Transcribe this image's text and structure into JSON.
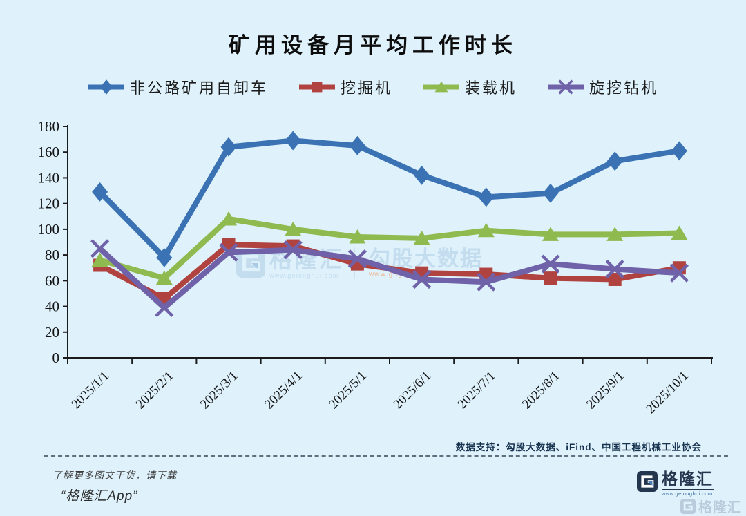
{
  "chart_data": {
    "type": "line",
    "title": "矿用设备月平均工作时长",
    "xlabel": "",
    "ylabel": "",
    "categories": [
      "2025/1/1",
      "2025/2/1",
      "2025/3/1",
      "2025/4/1",
      "2025/5/1",
      "2025/6/1",
      "2025/7/1",
      "2025/8/1",
      "2025/9/1",
      "2025/10/1"
    ],
    "series": [
      {
        "name": "非公路矿用自卸车",
        "color": "#3A72B4",
        "marker": "diamond",
        "values": [
          129,
          78,
          164,
          169,
          165,
          142,
          125,
          128,
          153,
          161
        ]
      },
      {
        "name": "挖掘机",
        "color": "#B04340",
        "marker": "square",
        "values": [
          72,
          46,
          88,
          87,
          73,
          66,
          65,
          62,
          61,
          70
        ]
      },
      {
        "name": "装载机",
        "color": "#8FBA4F",
        "marker": "triangle",
        "values": [
          76,
          62,
          108,
          100,
          94,
          93,
          99,
          96,
          96,
          97
        ]
      },
      {
        "name": "旋挖钻机",
        "color": "#6F62A8",
        "marker": "x",
        "values": [
          85,
          39,
          82,
          84,
          77,
          61,
          59,
          73,
          69,
          66
        ]
      }
    ],
    "ylim": [
      0,
      180
    ],
    "yticks": [
      0,
      20,
      40,
      60,
      80,
      100,
      120,
      140,
      160,
      180
    ],
    "grid": false,
    "legend_position": "top"
  },
  "watermark": {
    "brand": "格隆汇",
    "brand_url": "www.gelonghui.com",
    "product": "勾股大数据",
    "product_url": "www.gogudata.com"
  },
  "source_note": "数据支持：勾股大数据、iFind、中国工程机械工业协会",
  "footer": {
    "line1": "了解更多图文干货，请下载",
    "line2": "“格隆汇App”",
    "logo_text": "格隆汇",
    "logo_url": "www.gelonghui.com",
    "corner_watermark": "格隆汇"
  },
  "colors": {
    "background": "#DFF2FC",
    "axis_text": "#141414",
    "source_text": "#16324F",
    "watermark_blue": "#C3DCEE",
    "watermark_orange": "#F0B48A",
    "logo_navy": "#24364E"
  }
}
